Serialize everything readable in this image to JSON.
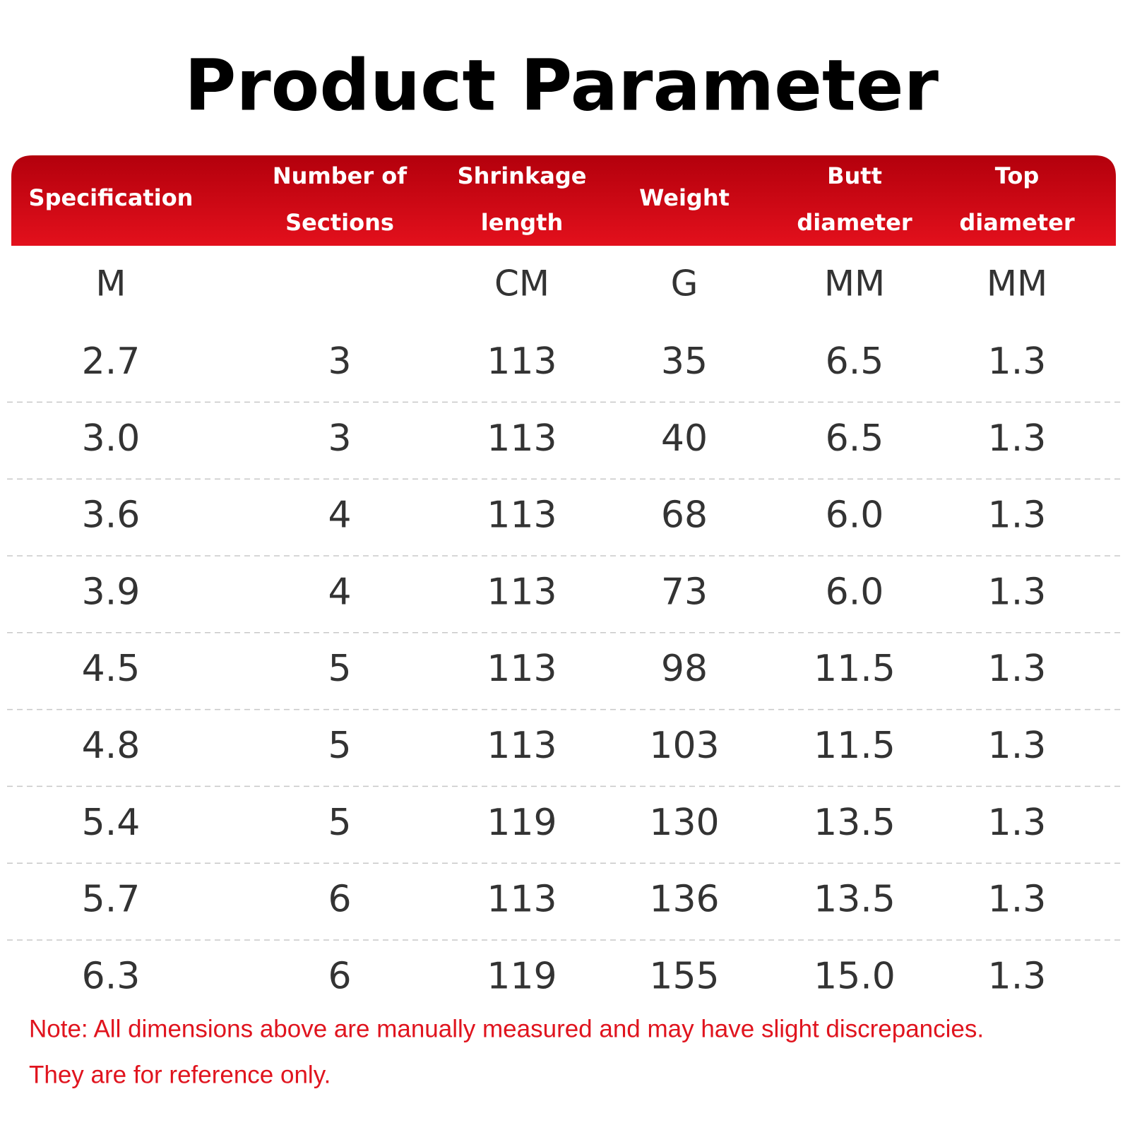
{
  "title": "Product Parameter",
  "table": {
    "headers": [
      [
        "Specification"
      ],
      [
        "Number of",
        "Sections"
      ],
      [
        "Shrinkage",
        "length"
      ],
      [
        "Weight"
      ],
      [
        "Butt",
        "diameter"
      ],
      [
        "Top",
        "diameter"
      ]
    ],
    "units": [
      "M",
      null,
      "CM",
      "G",
      "MM",
      "MM"
    ],
    "rows": [
      [
        "2.7",
        "3",
        "113",
        "35",
        "6.5",
        "1.3"
      ],
      [
        "3.0",
        "3",
        "113",
        "40",
        "6.5",
        "1.3"
      ],
      [
        "3.6",
        "4",
        "113",
        "68",
        "6.0",
        "1.3"
      ],
      [
        "3.9",
        "4",
        "113",
        "73",
        "6.0",
        "1.3"
      ],
      [
        "4.5",
        "5",
        "113",
        "98",
        "11.5",
        "1.3"
      ],
      [
        "4.8",
        "5",
        "113",
        "103",
        "11.5",
        "1.3"
      ],
      [
        "5.4",
        "5",
        "119",
        "130",
        "13.5",
        "1.3"
      ],
      [
        "5.7",
        "6",
        "113",
        "136",
        "13.5",
        "1.3"
      ],
      [
        "6.3",
        "6",
        "119",
        "155",
        "15.0",
        "1.3"
      ]
    ]
  },
  "note": [
    "Note: All dimensions above are manually measured and may have slight discrepancies.",
    "They are for reference only."
  ]
}
